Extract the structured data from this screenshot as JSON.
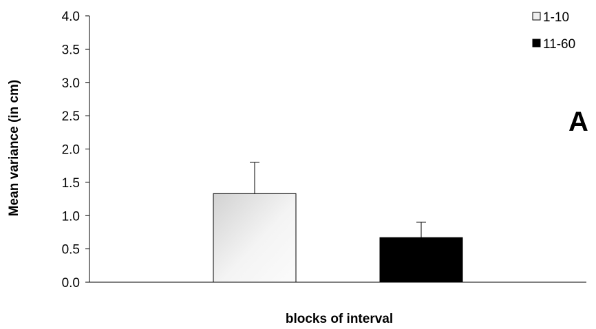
{
  "chart_data": {
    "type": "bar",
    "title": "",
    "panel_label": "A",
    "xlabel": "blocks of interval",
    "ylabel": "Mean variance (in cm)",
    "ylim": [
      0,
      4.0
    ],
    "yticks": [
      "0.0",
      "0.5",
      "1.0",
      "1.5",
      "2.0",
      "2.5",
      "3.0",
      "3.5",
      "4.0"
    ],
    "series": [
      {
        "name": "1-10",
        "value": 1.33,
        "error": 0.47,
        "color": "#eeeeee",
        "fill_style": "gradient"
      },
      {
        "name": "11-60",
        "value": 0.67,
        "error": 0.23,
        "color": "#000000",
        "fill_style": "solid"
      }
    ],
    "legend_position": "top-right",
    "grid": false,
    "error_bars": "upper"
  }
}
